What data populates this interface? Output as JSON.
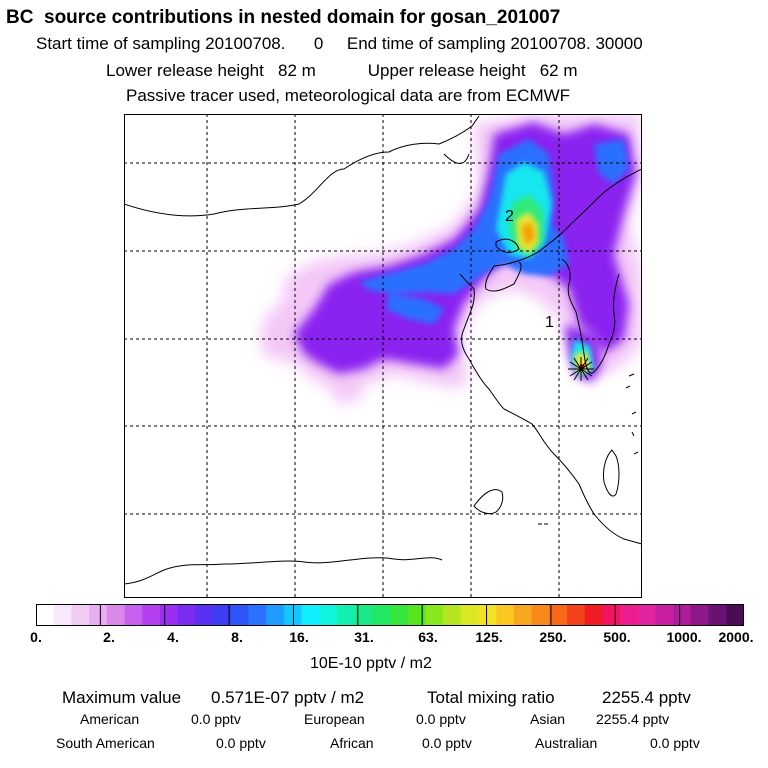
{
  "header": {
    "title": "BC  source contributions in nested domain for gosan_201007",
    "sampling_line": "Start time of sampling 20100708.      0     End time of sampling 20100708. 30000",
    "release_line": "Lower release height   82 m           Upper release height   62 m",
    "tracer_line": "Passive tracer used, meteorological data are from ECMWF"
  },
  "map": {
    "labels": [
      "2",
      "1"
    ],
    "colors": {
      "low": "#f3c8f7",
      "violet": "#8a24f0",
      "blue": "#2a70ff",
      "cyan": "#18e6ef",
      "green": "#2ee97a",
      "yellow": "#e9e83a",
      "orange": "#f5a000",
      "red": "#f01010"
    }
  },
  "colorbar": {
    "ticks": [
      "0.",
      "2.",
      "4.",
      "8.",
      "16.",
      "31.",
      "63.",
      "125.",
      "250.",
      "500.",
      "1000.",
      "2000."
    ],
    "unit": "10E-10 pptv / m2",
    "colors": [
      "#ffffff",
      "#f9e8fb",
      "#f1cdf5",
      "#e9aef1",
      "#d98ae9",
      "#c862ee",
      "#b43ff0",
      "#9b2ff1",
      "#7a2cf1",
      "#5a30f3",
      "#3d3df5",
      "#2d55f8",
      "#2a72ff",
      "#1f9cff",
      "#13c6ff",
      "#10eeff",
      "#10f3dc",
      "#12f0b0",
      "#1be987",
      "#22e864",
      "#35e53c",
      "#57e51f",
      "#8ae61d",
      "#b6e51f",
      "#dbe722",
      "#f1e223",
      "#fac620",
      "#f7a71e",
      "#f78a1a",
      "#f76818",
      "#f4431a",
      "#ef1c23",
      "#f21461",
      "#ee1d8f",
      "#e0239e",
      "#c820a0",
      "#ad1c9a",
      "#8c188a",
      "#6a1272",
      "#4a0d54"
    ]
  },
  "stats": {
    "max_label": "Maximum value",
    "max_value": "0.571E-07 pptv / m2",
    "total_label": "Total mixing ratio",
    "total_value": "2255.4 pptv",
    "american_label": "American",
    "american_value": "0.0 pptv",
    "european_label": "European",
    "european_value": "0.0 pptv",
    "asian_label": "Asian",
    "asian_value": "2255.4 pptv",
    "south_american_label": "South American",
    "south_american_value": "0.0 pptv",
    "african_label": "African",
    "african_value": "0.0 pptv",
    "australian_label": "Australian",
    "australian_value": "0.0 pptv"
  }
}
